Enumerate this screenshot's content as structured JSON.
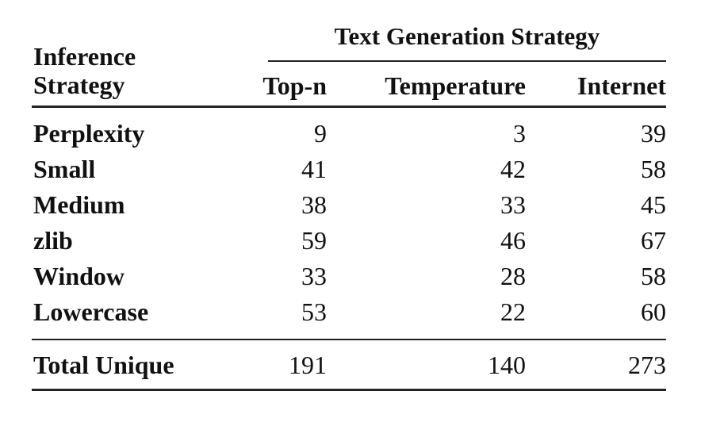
{
  "table": {
    "group_header": "Text Generation Strategy",
    "row_header": "Inference Strategy",
    "columns": [
      "Top-n",
      "Temperature",
      "Internet"
    ],
    "rows": [
      [
        "Perplexity",
        9,
        3,
        39
      ],
      [
        "Small",
        41,
        42,
        58
      ],
      [
        "Medium",
        38,
        33,
        45
      ],
      [
        "zlib",
        59,
        46,
        67
      ],
      [
        "Window",
        33,
        28,
        58
      ],
      [
        "Lowercase",
        53,
        22,
        60
      ]
    ],
    "total": [
      "Total Unique",
      191,
      140,
      273
    ]
  }
}
